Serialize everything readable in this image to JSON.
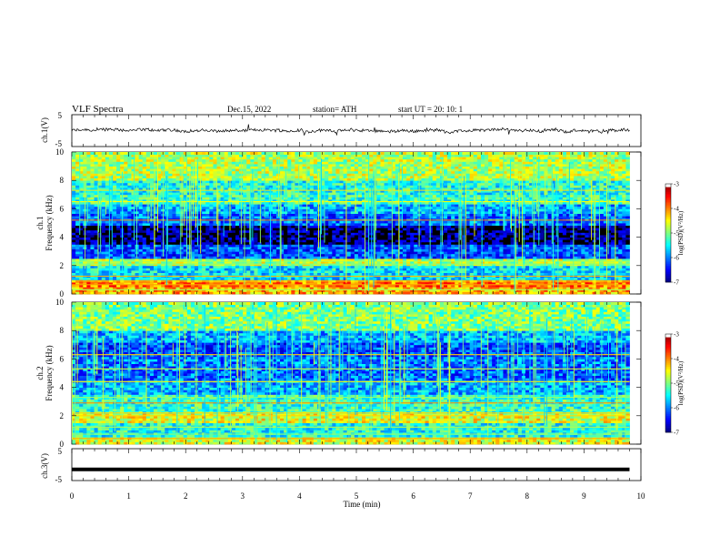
{
  "header": {
    "title": "VLF  Spectra",
    "date": "Dec.15, 2022",
    "station": "station= ATH",
    "start": "start  UT  =    20: 10: 1"
  },
  "chart_data": [
    {
      "type": "line",
      "name": "ch1-waveform",
      "ylabel": "ch.1(V)",
      "ylim": [
        -5,
        5
      ],
      "yticks": [
        "5",
        "-5"
      ],
      "xlim": [
        0,
        10
      ],
      "x_range": [
        0,
        9.8
      ],
      "description_level": "noisy waveform centered near 0 V, amplitude about 1 V",
      "values_sample": [
        0.2,
        -0.3,
        0.5,
        -0.1,
        0.3,
        -0.4,
        0.1,
        0.6,
        -0.2,
        0.0,
        -0.5,
        0.3
      ]
    },
    {
      "type": "heatmap",
      "name": "ch1-spectrogram",
      "ylabel_line1": "ch.1",
      "ylabel_line2": "Frequency  (kHz)",
      "ylim": [
        0,
        10
      ],
      "yticks": [
        "0",
        "2",
        "4",
        "6",
        "8",
        "10"
      ],
      "xlim": [
        0,
        10
      ],
      "x_range": [
        0,
        9.8
      ],
      "colorbar": {
        "label": "log(PSD)(V²/Hz)",
        "ticks": [
          "-3",
          "-4",
          "-5",
          "-6",
          "-7"
        ],
        "range": [
          -7,
          -3
        ]
      },
      "bands_khz_level": [
        [
          0.0,
          0.5,
          -4.2
        ],
        [
          0.5,
          1.0,
          -4.0
        ],
        [
          1.0,
          2.0,
          -5.6
        ],
        [
          2.0,
          2.5,
          -4.8
        ],
        [
          2.5,
          3.5,
          -6.2
        ],
        [
          3.5,
          4.8,
          -6.9
        ],
        [
          4.8,
          5.6,
          -6.1
        ],
        [
          5.6,
          6.4,
          -5.8
        ],
        [
          6.4,
          7.0,
          -5.3
        ],
        [
          7.0,
          8.0,
          -5.4
        ],
        [
          8.0,
          10.0,
          -4.8
        ]
      ]
    },
    {
      "type": "heatmap",
      "name": "ch2-spectrogram",
      "ylabel_line1": "ch.2",
      "ylabel_line2": "Frequency  (kHz)",
      "ylim": [
        0,
        10
      ],
      "yticks": [
        "0",
        "2",
        "4",
        "6",
        "8",
        "10"
      ],
      "xlim": [
        0,
        10
      ],
      "x_range": [
        0,
        9.8
      ],
      "colorbar": {
        "label": "log(PSD)(V²/Hz)",
        "ticks": [
          "-3",
          "-4",
          "-5",
          "-6",
          "-7"
        ],
        "range": [
          -7,
          -3
        ]
      },
      "bands_khz_level": [
        [
          0.0,
          0.5,
          -4.6
        ],
        [
          0.5,
          1.5,
          -5.4
        ],
        [
          1.5,
          2.2,
          -4.6
        ],
        [
          2.2,
          3.5,
          -5.3
        ],
        [
          3.5,
          4.5,
          -5.8
        ],
        [
          4.5,
          5.5,
          -6.1
        ],
        [
          5.5,
          6.2,
          -6.0
        ],
        [
          6.2,
          7.2,
          -6.2
        ],
        [
          7.2,
          8.0,
          -5.8
        ],
        [
          8.0,
          10.0,
          -5.0
        ]
      ]
    },
    {
      "type": "line",
      "name": "ch3-waveform",
      "ylabel": "ch.3(V)",
      "ylim": [
        -5,
        5
      ],
      "yticks": [
        "5",
        "-5"
      ],
      "xlim": [
        0,
        10
      ],
      "x_range": [
        0,
        9.8
      ],
      "description_level": "flat line near -1.5 V",
      "values_sample": [
        -1.5,
        -1.5,
        -1.5,
        -1.5
      ]
    }
  ],
  "xaxis": {
    "label": "Time  (min)",
    "ticks": [
      "0",
      "1",
      "2",
      "3",
      "4",
      "5",
      "6",
      "7",
      "8",
      "9",
      "10"
    ]
  }
}
